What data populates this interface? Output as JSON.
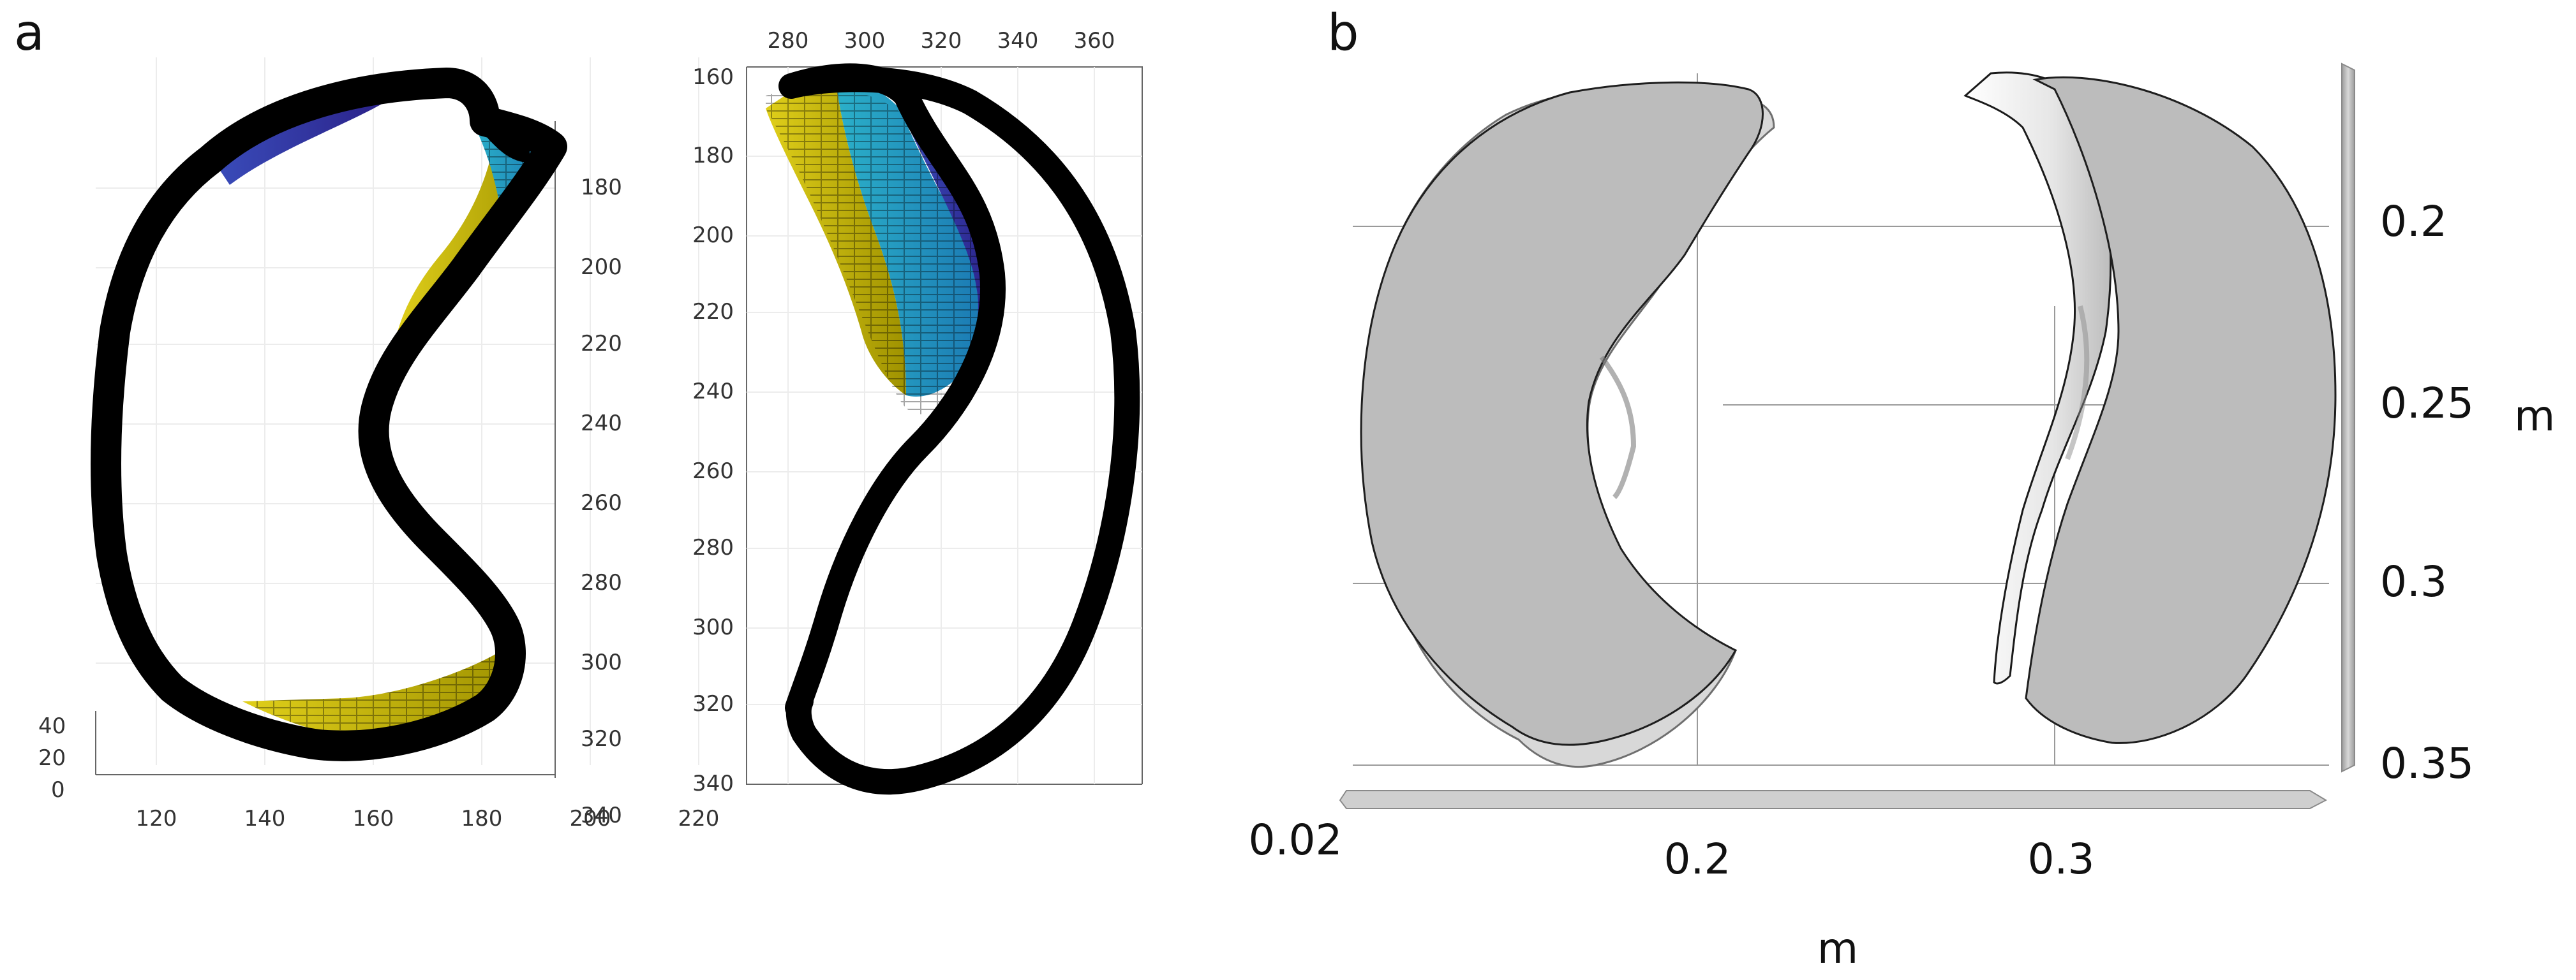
{
  "panels": [
    {
      "id": "a",
      "label": "a",
      "views": [
        {
          "x_ticks": [
            "120",
            "140",
            "160",
            "180",
            "200",
            "220"
          ],
          "y_ticks": [
            "180",
            "200",
            "220",
            "240",
            "260",
            "280",
            "300",
            "320",
            "340"
          ],
          "z_ticks": [
            "40",
            "20",
            "0"
          ]
        },
        {
          "x_ticks": [
            "280",
            "300",
            "320",
            "340",
            "360"
          ],
          "y_ticks": [
            "160",
            "180",
            "200",
            "220",
            "240",
            "260",
            "280",
            "300",
            "320",
            "340"
          ]
        }
      ]
    },
    {
      "id": "b",
      "label": "b",
      "x_ticks": [
        "0.02",
        "0.2",
        "0.3"
      ],
      "x_unit": "m",
      "y_ticks": [
        "0.2",
        "0.25",
        "0.3",
        "0.35"
      ],
      "y_unit": "m"
    }
  ],
  "colors": {
    "wall": "#000000",
    "yellow": "#d4c414",
    "cyan": "#1fa2c6",
    "blue": "#3a2fa8",
    "gray_fill": "#bcbcbc",
    "gray_axis": "#a9a9a9"
  }
}
